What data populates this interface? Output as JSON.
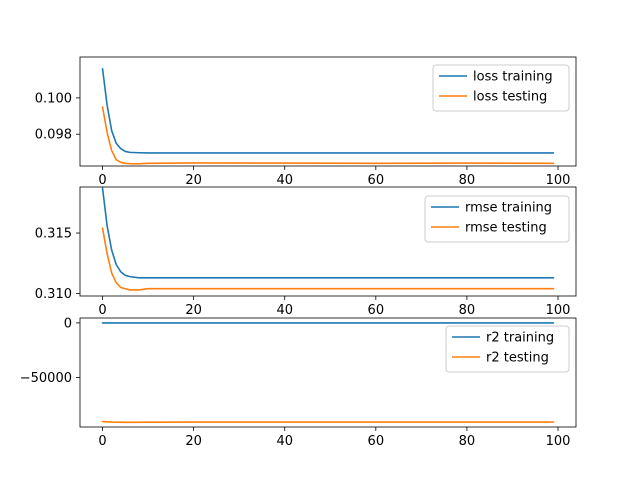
{
  "colors": {
    "training": "#1f77b4",
    "testing": "#ff7f0e"
  },
  "chart_data": [
    {
      "type": "line",
      "xlim": [
        -4.95,
        103.95
      ],
      "ylim": [
        0.09625,
        0.10225
      ],
      "xticks": [
        0,
        20,
        40,
        60,
        80,
        100
      ],
      "yticks": [
        0.098,
        0.1
      ],
      "ytick_labels": [
        "0.098",
        "0.100"
      ],
      "legend": "top-right",
      "grid": false,
      "series": [
        {
          "name": "loss training",
          "color_key": "training",
          "x": [
            0,
            1,
            2,
            3,
            4,
            5,
            6,
            8,
            10,
            20,
            40,
            60,
            80,
            99
          ],
          "y": [
            0.1016,
            0.0996,
            0.0982,
            0.0975,
            0.0972,
            0.09705,
            0.097,
            0.09698,
            0.09697,
            0.09697,
            0.09697,
            0.09697,
            0.09697,
            0.09697
          ]
        },
        {
          "name": "loss testing",
          "color_key": "testing",
          "x": [
            0,
            1,
            2,
            3,
            4,
            5,
            6,
            8,
            10,
            20,
            40,
            60,
            80,
            99
          ],
          "y": [
            0.0995,
            0.0981,
            0.0971,
            0.0966,
            0.09645,
            0.0964,
            0.09638,
            0.09637,
            0.0964,
            0.09642,
            0.09641,
            0.0964,
            0.09641,
            0.0964
          ]
        }
      ]
    },
    {
      "type": "line",
      "xlim": [
        -4.95,
        103.95
      ],
      "ylim": [
        0.3098,
        0.3188
      ],
      "xticks": [
        0,
        20,
        40,
        60,
        80,
        100
      ],
      "yticks": [
        0.31,
        0.315
      ],
      "ytick_labels": [
        "0.310",
        "0.315"
      ],
      "legend": "top-right",
      "grid": false,
      "series": [
        {
          "name": "rmse training",
          "color_key": "training",
          "x": [
            0,
            1,
            2,
            3,
            4,
            5,
            6,
            8,
            10,
            20,
            40,
            60,
            80,
            99
          ],
          "y": [
            0.3187,
            0.3156,
            0.3136,
            0.3124,
            0.3118,
            0.3115,
            0.3114,
            0.3113,
            0.3113,
            0.3113,
            0.3113,
            0.3113,
            0.3113,
            0.3113
          ]
        },
        {
          "name": "rmse testing",
          "color_key": "testing",
          "x": [
            0,
            1,
            2,
            3,
            4,
            5,
            6,
            8,
            10,
            20,
            40,
            60,
            80,
            99
          ],
          "y": [
            0.3154,
            0.3133,
            0.3117,
            0.3109,
            0.3105,
            0.3104,
            0.3103,
            0.3103,
            0.3104,
            0.3104,
            0.3104,
            0.3104,
            0.3104,
            0.3104
          ]
        }
      ]
    },
    {
      "type": "line",
      "xlim": [
        -4.95,
        103.95
      ],
      "ylim": [
        -95500,
        4500
      ],
      "xticks": [
        0,
        20,
        40,
        60,
        80,
        100
      ],
      "yticks": [
        0,
        -50000
      ],
      "ytick_labels": [
        "0",
        "−50000"
      ],
      "legend": "top-right",
      "grid": false,
      "series": [
        {
          "name": "r2 training",
          "color_key": "training",
          "x": [
            0,
            10,
            20,
            40,
            60,
            80,
            99
          ],
          "y": [
            0,
            0,
            0,
            0,
            0,
            0,
            0
          ]
        },
        {
          "name": "r2 testing",
          "color_key": "testing",
          "x": [
            0,
            2,
            5,
            10,
            20,
            40,
            60,
            80,
            99
          ],
          "y": [
            -90500,
            -91000,
            -91200,
            -91100,
            -91000,
            -91000,
            -91000,
            -91000,
            -91000
          ]
        }
      ]
    }
  ]
}
